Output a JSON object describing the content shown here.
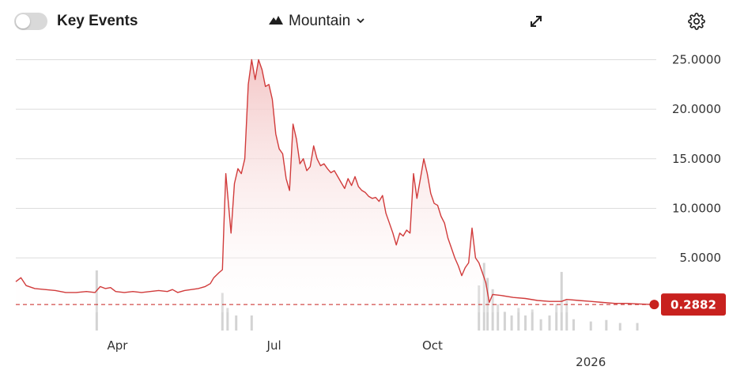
{
  "toolbar": {
    "key_events_label": "Key Events",
    "key_events_enabled": false,
    "chart_type_label": "Mountain",
    "chart_type_icon": "mountain-icon",
    "expand_icon": "expand-icon",
    "settings_icon": "gear-icon"
  },
  "colors": {
    "line": "#d13b3b",
    "area_top": "#f3c4c4",
    "last_price_badge": "#c8211e",
    "grid": "#dcdcdc",
    "volume": "#d3d3d3"
  },
  "chart_data": {
    "type": "area",
    "y_axis_position": "right",
    "ylim": [
      -0.5,
      26
    ],
    "yticks": [
      "25.0000",
      "20.0000",
      "15.0000",
      "10.0000",
      "5.0000"
    ],
    "ytick_values": [
      25,
      20,
      15,
      10,
      5
    ],
    "x_start": "2025-02-01",
    "x_end": "2026-02-08",
    "xticks": [
      {
        "label": "Apr",
        "date": "2025-04-01"
      },
      {
        "label": "Jul",
        "date": "2025-07-01"
      },
      {
        "label": "Oct",
        "date": "2025-10-01"
      },
      {
        "label": "2026",
        "date": "2026-01-01"
      }
    ],
    "last_price": 0.2882,
    "last_price_label": "0.2882",
    "grid": true,
    "series": [
      {
        "points": [
          [
            "2025-02-01",
            2.6
          ],
          [
            "2025-02-04",
            3.0
          ],
          [
            "2025-02-07",
            2.2
          ],
          [
            "2025-02-12",
            1.9
          ],
          [
            "2025-02-18",
            1.8
          ],
          [
            "2025-02-24",
            1.7
          ],
          [
            "2025-03-02",
            1.5
          ],
          [
            "2025-03-08",
            1.5
          ],
          [
            "2025-03-14",
            1.6
          ],
          [
            "2025-03-19",
            1.5
          ],
          [
            "2025-03-22",
            2.1
          ],
          [
            "2025-03-25",
            1.9
          ],
          [
            "2025-03-28",
            2.0
          ],
          [
            "2025-03-31",
            1.6
          ],
          [
            "2025-04-05",
            1.5
          ],
          [
            "2025-04-10",
            1.6
          ],
          [
            "2025-04-15",
            1.5
          ],
          [
            "2025-04-20",
            1.6
          ],
          [
            "2025-04-25",
            1.7
          ],
          [
            "2025-04-30",
            1.6
          ],
          [
            "2025-05-03",
            1.8
          ],
          [
            "2025-05-06",
            1.5
          ],
          [
            "2025-05-10",
            1.7
          ],
          [
            "2025-05-14",
            1.8
          ],
          [
            "2025-05-18",
            1.9
          ],
          [
            "2025-05-22",
            2.1
          ],
          [
            "2025-05-25",
            2.4
          ],
          [
            "2025-05-27",
            3.0
          ],
          [
            "2025-05-30",
            3.5
          ],
          [
            "2025-06-01",
            3.8
          ],
          [
            "2025-06-02",
            9.0
          ],
          [
            "2025-06-03",
            13.5
          ],
          [
            "2025-06-06",
            7.5
          ],
          [
            "2025-06-08",
            12.5
          ],
          [
            "2025-06-10",
            14.0
          ],
          [
            "2025-06-12",
            13.5
          ],
          [
            "2025-06-14",
            15.0
          ],
          [
            "2025-06-16",
            22.5
          ],
          [
            "2025-06-18",
            25.0
          ],
          [
            "2025-06-20",
            23.0
          ],
          [
            "2025-06-22",
            25.0
          ],
          [
            "2025-06-24",
            24.0
          ],
          [
            "2025-06-26",
            22.3
          ],
          [
            "2025-06-28",
            22.5
          ],
          [
            "2025-06-30",
            21.0
          ],
          [
            "2025-07-02",
            17.5
          ],
          [
            "2025-07-04",
            16.0
          ],
          [
            "2025-07-06",
            15.5
          ],
          [
            "2025-07-08",
            13.0
          ],
          [
            "2025-07-10",
            11.8
          ],
          [
            "2025-07-12",
            18.5
          ],
          [
            "2025-07-14",
            17.0
          ],
          [
            "2025-07-16",
            14.5
          ],
          [
            "2025-07-18",
            15.0
          ],
          [
            "2025-07-20",
            13.8
          ],
          [
            "2025-07-22",
            14.2
          ],
          [
            "2025-07-24",
            16.3
          ],
          [
            "2025-07-26",
            15.0
          ],
          [
            "2025-07-28",
            14.3
          ],
          [
            "2025-07-30",
            14.5
          ],
          [
            "2025-08-01",
            14.0
          ],
          [
            "2025-08-03",
            13.6
          ],
          [
            "2025-08-05",
            13.8
          ],
          [
            "2025-08-07",
            13.2
          ],
          [
            "2025-08-09",
            12.6
          ],
          [
            "2025-08-11",
            12.0
          ],
          [
            "2025-08-13",
            13.0
          ],
          [
            "2025-08-15",
            12.3
          ],
          [
            "2025-08-17",
            13.2
          ],
          [
            "2025-08-19",
            12.2
          ],
          [
            "2025-08-21",
            11.8
          ],
          [
            "2025-08-23",
            11.6
          ],
          [
            "2025-08-25",
            11.2
          ],
          [
            "2025-08-27",
            11.0
          ],
          [
            "2025-08-29",
            11.1
          ],
          [
            "2025-08-31",
            10.7
          ],
          [
            "2025-09-02",
            11.3
          ],
          [
            "2025-09-04",
            9.5
          ],
          [
            "2025-09-06",
            8.5
          ],
          [
            "2025-09-08",
            7.5
          ],
          [
            "2025-09-10",
            6.3
          ],
          [
            "2025-09-12",
            7.5
          ],
          [
            "2025-09-14",
            7.2
          ],
          [
            "2025-09-16",
            7.8
          ],
          [
            "2025-09-18",
            7.5
          ],
          [
            "2025-09-20",
            13.5
          ],
          [
            "2025-09-22",
            11.0
          ],
          [
            "2025-09-24",
            13.0
          ],
          [
            "2025-09-26",
            15.0
          ],
          [
            "2025-09-28",
            13.5
          ],
          [
            "2025-09-30",
            11.5
          ],
          [
            "2025-10-02",
            10.5
          ],
          [
            "2025-10-04",
            10.3
          ],
          [
            "2025-10-06",
            9.2
          ],
          [
            "2025-10-08",
            8.5
          ],
          [
            "2025-10-10",
            7.0
          ],
          [
            "2025-10-12",
            6.0
          ],
          [
            "2025-10-14",
            5.0
          ],
          [
            "2025-10-16",
            4.2
          ],
          [
            "2025-10-18",
            3.2
          ],
          [
            "2025-10-20",
            4.0
          ],
          [
            "2025-10-22",
            4.5
          ],
          [
            "2025-10-24",
            8.0
          ],
          [
            "2025-10-26",
            5.0
          ],
          [
            "2025-10-28",
            4.5
          ],
          [
            "2025-10-30",
            3.5
          ],
          [
            "2025-11-01",
            2.5
          ],
          [
            "2025-11-03",
            0.5
          ],
          [
            "2025-11-05",
            1.3
          ],
          [
            "2025-11-10",
            1.2
          ],
          [
            "2025-11-17",
            1.0
          ],
          [
            "2025-11-24",
            0.9
          ],
          [
            "2025-12-01",
            0.7
          ],
          [
            "2025-12-08",
            0.6
          ],
          [
            "2025-12-15",
            0.6
          ],
          [
            "2025-12-18",
            0.8
          ],
          [
            "2025-12-25",
            0.7
          ],
          [
            "2026-01-01",
            0.6
          ],
          [
            "2026-01-08",
            0.5
          ],
          [
            "2026-01-15",
            0.4
          ],
          [
            "2026-01-22",
            0.4
          ],
          [
            "2026-01-29",
            0.35
          ],
          [
            "2026-02-05",
            0.2882
          ]
        ]
      }
    ],
    "volume": [
      [
        "2025-03-20",
        0.8
      ],
      [
        "2025-06-01",
        0.5
      ],
      [
        "2025-06-04",
        0.3
      ],
      [
        "2025-06-09",
        0.2
      ],
      [
        "2025-06-18",
        0.2
      ],
      [
        "2025-10-28",
        0.6
      ],
      [
        "2025-10-31",
        0.9
      ],
      [
        "2025-11-02",
        0.7
      ],
      [
        "2025-11-05",
        0.55
      ],
      [
        "2025-11-08",
        0.35
      ],
      [
        "2025-11-12",
        0.25
      ],
      [
        "2025-11-16",
        0.2
      ],
      [
        "2025-11-20",
        0.3
      ],
      [
        "2025-11-24",
        0.2
      ],
      [
        "2025-11-28",
        0.28
      ],
      [
        "2025-12-03",
        0.15
      ],
      [
        "2025-12-08",
        0.2
      ],
      [
        "2025-12-12",
        0.35
      ],
      [
        "2025-12-15",
        0.78
      ],
      [
        "2025-12-18",
        0.4
      ],
      [
        "2025-12-22",
        0.15
      ],
      [
        "2026-01-01",
        0.12
      ],
      [
        "2026-01-10",
        0.14
      ],
      [
        "2026-01-18",
        0.1
      ],
      [
        "2026-01-28",
        0.1
      ]
    ]
  }
}
